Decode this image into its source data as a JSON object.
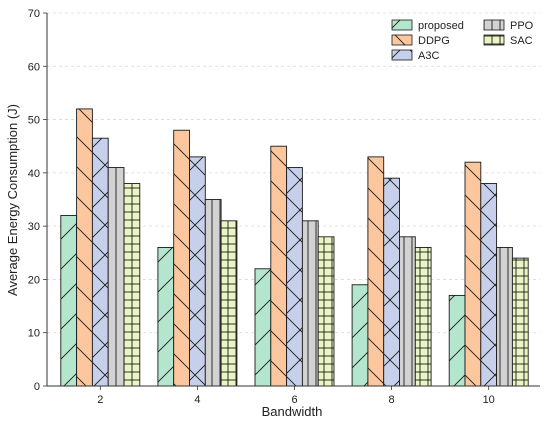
{
  "chart_data": {
    "type": "bar",
    "title": "",
    "xlabel": "Bandwidth",
    "ylabel": "Average Energy Consumption (J)",
    "categories": [
      "2",
      "4",
      "6",
      "8",
      "10"
    ],
    "ylim": [
      0,
      70
    ],
    "yticks": [
      0,
      10,
      20,
      30,
      40,
      50,
      60,
      70
    ],
    "grid": "horizontal dashed",
    "legend": "top-right",
    "series": [
      {
        "name": "proposed",
        "values": [
          32,
          26,
          22,
          19,
          17
        ],
        "color": "#b3e6cc",
        "hatch": "forward-diagonal"
      },
      {
        "name": "DDPG",
        "values": [
          52,
          48,
          45,
          43,
          42
        ],
        "color": "#fcc79e",
        "hatch": "back-diagonal"
      },
      {
        "name": "A3C",
        "values": [
          46.5,
          43,
          41,
          39,
          38
        ],
        "color": "#c6d0ea",
        "hatch": "cross"
      },
      {
        "name": "PPO",
        "values": [
          41,
          35,
          31,
          28,
          26
        ],
        "color": "#d2d2d2",
        "hatch": "vertical"
      },
      {
        "name": "SAC",
        "values": [
          38,
          31,
          28,
          26,
          24
        ],
        "color": "#eaf5c4",
        "hatch": "grid"
      }
    ]
  }
}
